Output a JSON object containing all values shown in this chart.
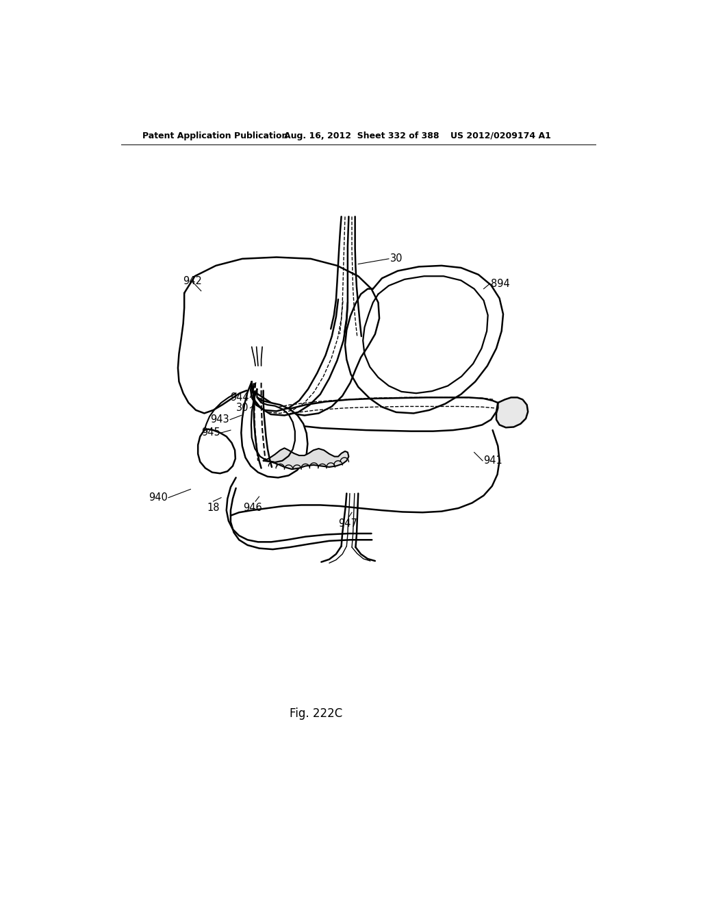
{
  "title_left": "Patent Application Publication",
  "title_mid": "Aug. 16, 2012  Sheet 332 of 388",
  "title_right": "US 2012/0209174 A1",
  "fig_label": "Fig. 222C",
  "bg": "#ffffff",
  "lc": "#000000"
}
